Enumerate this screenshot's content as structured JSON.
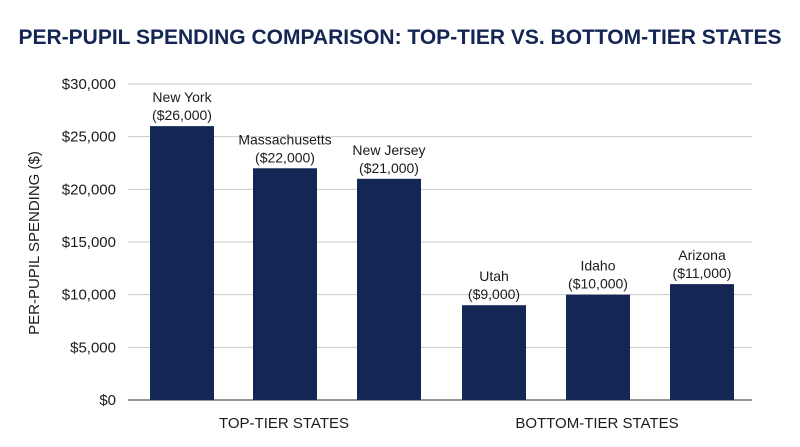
{
  "colors": {
    "bar": "#132654",
    "title": "#132654",
    "grid": "#c8c8c8",
    "axis": "#555555"
  },
  "chart_data": {
    "type": "bar",
    "title": "PER-PUPIL SPENDING COMPARISON: TOP-TIER VS. BOTTOM-TIER STATES",
    "ylabel": "PER-PUPIL SPENDING ($)",
    "xlabel": "",
    "ylim": [
      0,
      30000
    ],
    "yticks": [
      0,
      5000,
      10000,
      15000,
      20000,
      25000,
      30000
    ],
    "ytick_labels": [
      "$0",
      "$5,000",
      "$10,000",
      "$15,000",
      "$20,000",
      "$25,000",
      "$30,000"
    ],
    "grid": true,
    "groups": [
      {
        "label": "TOP-TIER STATES",
        "categories": [
          "New York",
          "Massachusetts",
          "New Jersey"
        ]
      },
      {
        "label": "BOTTOM-TIER STATES",
        "categories": [
          "Utah",
          "Idaho",
          "Arizona"
        ]
      }
    ],
    "categories": [
      "New York",
      "Massachusetts",
      "New Jersey",
      "Utah",
      "Idaho",
      "Arizona"
    ],
    "values": [
      26000,
      22000,
      21000,
      9000,
      10000,
      11000
    ],
    "value_labels": [
      "($26,000)",
      "($22,000)",
      "($21,000)",
      "($9,000)",
      "($10,000)",
      "($11,000)"
    ]
  }
}
